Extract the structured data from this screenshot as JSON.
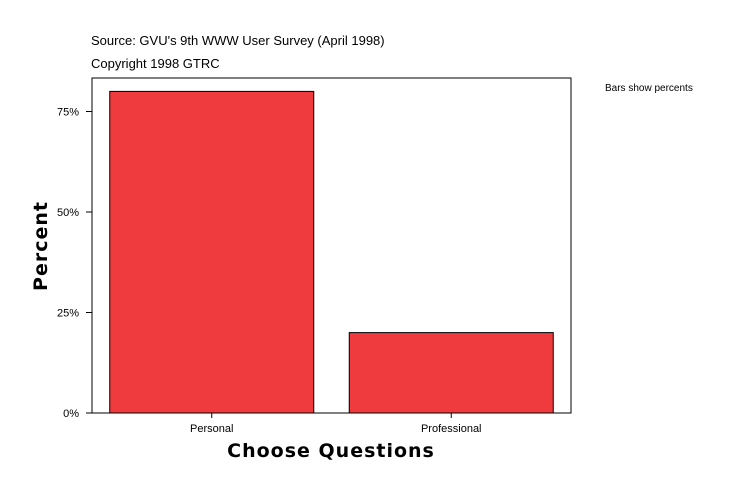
{
  "header": {
    "source": "Source: GVU's 9th WWW User Survey (April 1998)",
    "copyright": "Copyright 1998 GTRC"
  },
  "note": "Bars show percents",
  "chart_data": {
    "type": "bar",
    "categories": [
      "Personal",
      "Professional"
    ],
    "values": [
      80,
      20
    ],
    "xlabel": "Choose Questions",
    "ylabel": "Percent",
    "ylim": [
      0,
      80
    ],
    "yticks": [
      0,
      25,
      50,
      75
    ],
    "ytick_labels": [
      "0%",
      "25%",
      "50%",
      "75%"
    ],
    "bar_color": "#ef3b3d",
    "grid": false,
    "legend": "none"
  }
}
